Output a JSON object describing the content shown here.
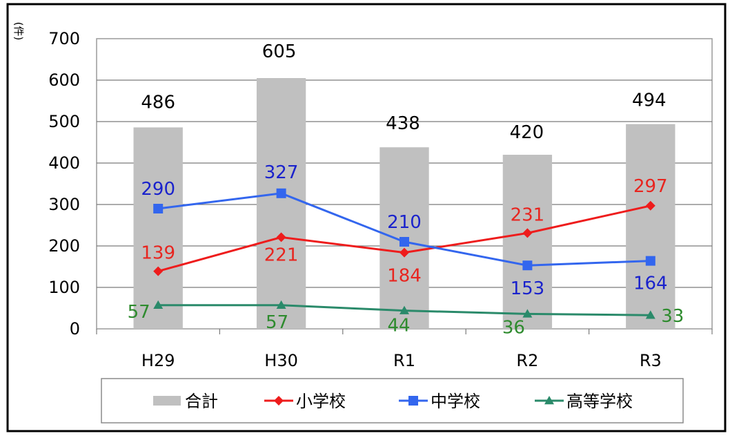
{
  "chart_data": {
    "type": "bar",
    "y_unit": "(件)",
    "categories": [
      "H29",
      "H30",
      "R1",
      "R2",
      "R3"
    ],
    "ylim": [
      0,
      700
    ],
    "yticks": [
      0,
      100,
      200,
      300,
      400,
      500,
      600,
      700
    ],
    "grid": true,
    "legend_position": "bottom",
    "series": [
      {
        "name": "合計",
        "kind": "bar",
        "color": "#c0c0c0",
        "values": [
          486,
          605,
          438,
          420,
          494
        ],
        "label_color": "#000000"
      },
      {
        "name": "小学校",
        "kind": "line",
        "marker": "diamond",
        "color": "#ee1c1c",
        "values": [
          139,
          221,
          184,
          231,
          297
        ],
        "label_color": "#e8251f"
      },
      {
        "name": "中学校",
        "kind": "line",
        "marker": "square",
        "color": "#3366ee",
        "values": [
          290,
          327,
          210,
          153,
          164
        ],
        "label_color": "#1a22cc"
      },
      {
        "name": "高等学校",
        "kind": "line",
        "marker": "triangle",
        "color": "#2a8a6a",
        "values": [
          57,
          57,
          44,
          36,
          33
        ],
        "label_color": "#2e8b2e"
      }
    ]
  }
}
